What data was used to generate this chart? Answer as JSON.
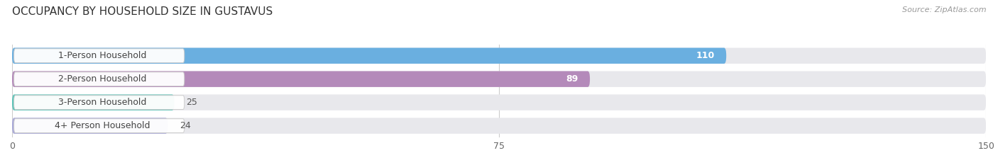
{
  "title": "OCCUPANCY BY HOUSEHOLD SIZE IN GUSTAVUS",
  "source": "Source: ZipAtlas.com",
  "categories": [
    "1-Person Household",
    "2-Person Household",
    "3-Person Household",
    "4+ Person Household"
  ],
  "values": [
    110,
    89,
    25,
    24
  ],
  "bar_colors": [
    "#6aafe0",
    "#b48aba",
    "#5ec4b8",
    "#a8a8d8"
  ],
  "xlim": [
    0,
    150
  ],
  "xticks": [
    0,
    75,
    150
  ],
  "background_color": "#ffffff",
  "bar_bg_color": "#e8e8ec",
  "title_fontsize": 11,
  "label_fontsize": 9,
  "value_fontsize": 9,
  "source_fontsize": 8
}
